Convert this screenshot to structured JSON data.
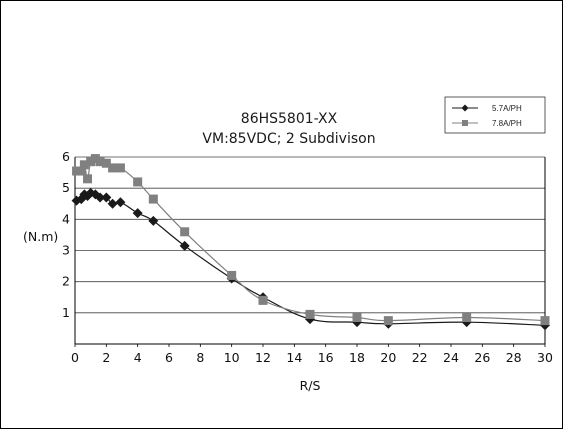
{
  "chart_data": {
    "type": "line",
    "title": "86HS5801-XX",
    "subtitle": "VM:85VDC; 2 Subdivison",
    "xlabel": "R/S",
    "ylabel": "(N.m)",
    "xlim": [
      0,
      30
    ],
    "ylim": [
      0,
      6
    ],
    "x_ticks": [
      "0",
      "2",
      "4",
      "6",
      "8",
      "10",
      "12",
      "14",
      "16",
      "18",
      "20",
      "22",
      "24",
      "26",
      "28",
      "30"
    ],
    "y_ticks": [
      "1",
      "2",
      "3",
      "4",
      "5",
      "6"
    ],
    "grid": "horizontal",
    "legend_position": "top-right",
    "series": [
      {
        "name": "5.7A/PH",
        "marker": "diamond",
        "color": "#1a1a1a",
        "x": [
          0.1,
          0.4,
          0.6,
          0.8,
          1.0,
          1.3,
          1.6,
          2.0,
          2.4,
          2.9,
          4.0,
          5.0,
          7.0,
          10.0,
          12.0,
          15.0,
          18.0,
          20.0,
          25.0,
          30.0
        ],
        "y": [
          4.6,
          4.65,
          4.8,
          4.75,
          4.85,
          4.8,
          4.7,
          4.7,
          4.5,
          4.55,
          4.2,
          3.95,
          3.15,
          2.1,
          1.5,
          0.8,
          0.7,
          0.65,
          0.7,
          0.6
        ]
      },
      {
        "name": "7.8A/PH",
        "marker": "square",
        "color": "#808080",
        "x": [
          0.1,
          0.4,
          0.6,
          0.8,
          1.0,
          1.3,
          1.6,
          2.0,
          2.4,
          2.9,
          4.0,
          5.0,
          7.0,
          10.0,
          12.0,
          15.0,
          18.0,
          20.0,
          25.0,
          30.0
        ],
        "y": [
          5.55,
          5.55,
          5.75,
          5.3,
          5.85,
          5.95,
          5.85,
          5.8,
          5.65,
          5.65,
          5.2,
          4.65,
          3.6,
          2.2,
          1.4,
          0.95,
          0.85,
          0.75,
          0.85,
          0.75
        ]
      }
    ]
  }
}
